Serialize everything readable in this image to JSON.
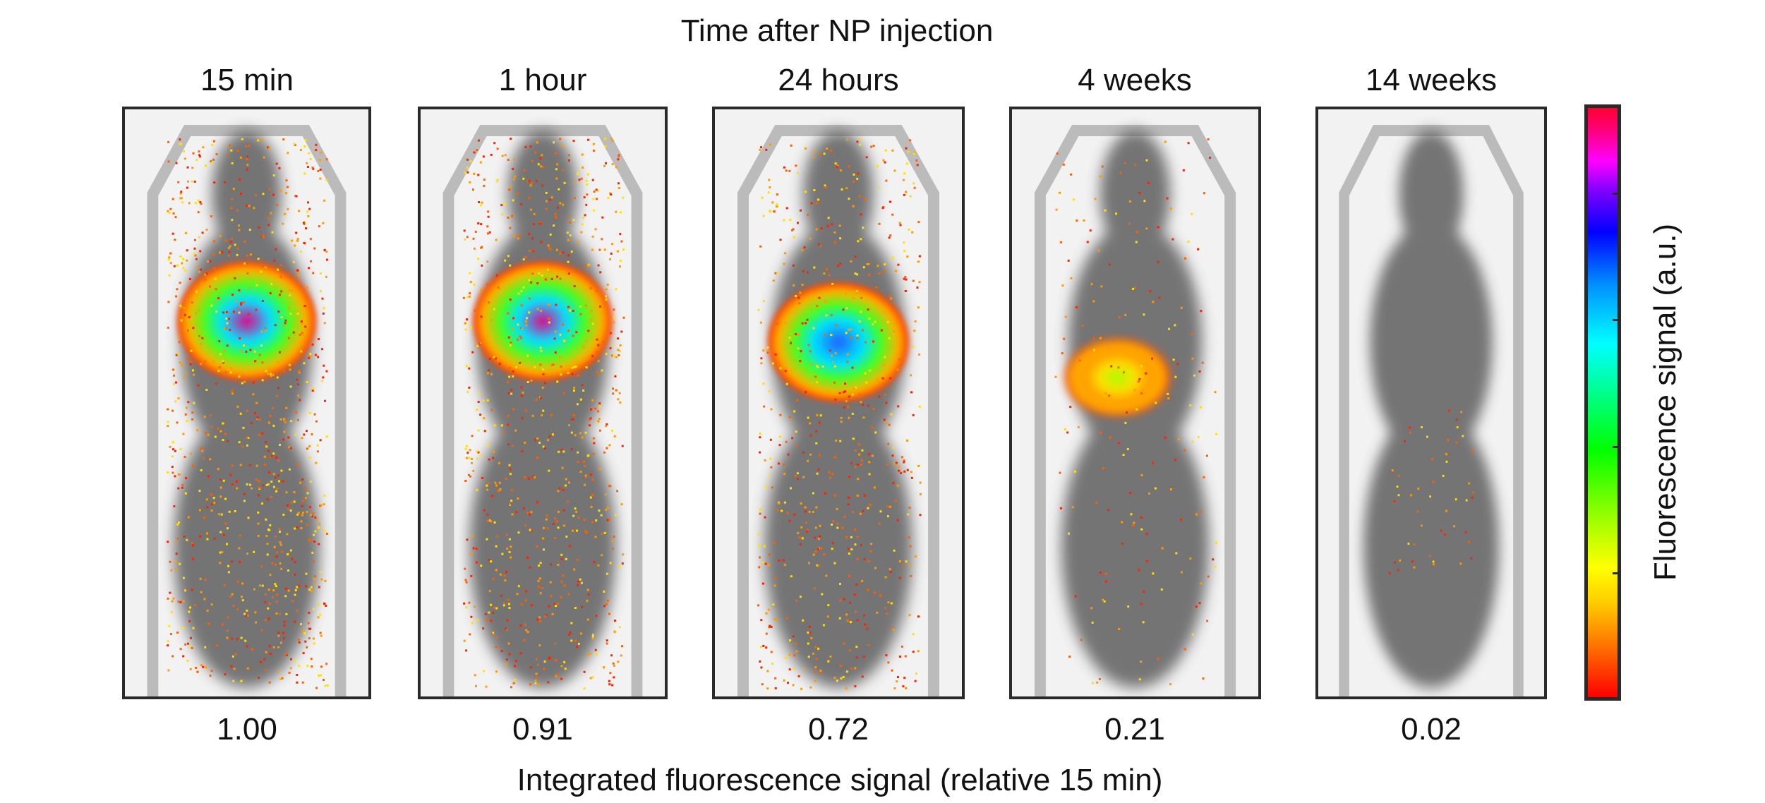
{
  "figure": {
    "top_title": "Time after NP injection",
    "bottom_label": "Integrated fluorescence signal (relative 15 min)",
    "colorbar_label": "Fluorescence signal (a.u.)"
  },
  "panels": [
    {
      "label": "15 min",
      "value": "1.00",
      "signal": 1.0
    },
    {
      "label": "1 hour",
      "value": "0.91",
      "signal": 0.91
    },
    {
      "label": "24 hours",
      "value": "0.72",
      "signal": 0.72
    },
    {
      "label": "4 weeks",
      "value": "0.21",
      "signal": 0.21
    },
    {
      "label": "14 weeks",
      "value": "0.02",
      "signal": 0.02
    }
  ]
}
